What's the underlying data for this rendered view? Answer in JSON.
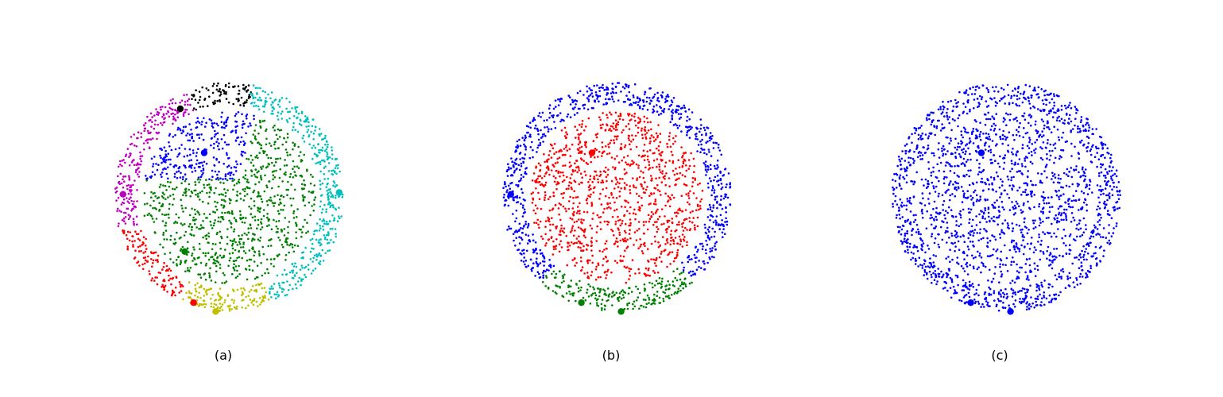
{
  "chart_data": [
    {
      "type": "scatter",
      "caption": "(a)",
      "shape": "disk-and-ring",
      "ring": {
        "inner_r": 1.04,
        "outer_r": 1.3
      },
      "disk": {
        "r": 0.98
      },
      "xlim": [
        -1.35,
        1.35
      ],
      "ylim": [
        -1.35,
        1.35
      ],
      "n_points": {
        "disk": 1100,
        "ring": 1000
      },
      "clusters": [
        {
          "region": "disk",
          "rule": "disk-upper-left",
          "color": "#0000ff",
          "center": [
            -0.28,
            0.5
          ]
        },
        {
          "region": "disk",
          "rule": "disk-rest",
          "color": "#008000",
          "center": [
            -0.5,
            -0.62
          ]
        },
        {
          "region": "ring",
          "angle_range": [
            -68,
            78
          ],
          "color": "#00bfbf",
          "center": [
            1.25,
            0.05
          ]
        },
        {
          "region": "ring",
          "angle_range": [
            78,
            112
          ],
          "color": "#000000",
          "center": [
            -0.55,
            1.0
          ]
        },
        {
          "region": "ring",
          "angle_range": [
            112,
            197
          ],
          "color": "#bf00bf",
          "center": [
            -1.2,
            0.03
          ]
        },
        {
          "region": "ring",
          "angle_range": [
            197,
            245
          ],
          "color": "#ff0000",
          "center": [
            -0.4,
            -1.2
          ]
        },
        {
          "region": "ring",
          "angle_range": [
            245,
            292
          ],
          "color": "#bfbf00",
          "center": [
            -0.15,
            -1.3
          ]
        }
      ]
    },
    {
      "type": "scatter",
      "caption": "(b)",
      "shape": "disk-and-ring",
      "ring": {
        "inner_r": 1.04,
        "outer_r": 1.3
      },
      "disk": {
        "r": 0.98
      },
      "xlim": [
        -1.35,
        1.35
      ],
      "ylim": [
        -1.35,
        1.35
      ],
      "n_points": {
        "disk": 1100,
        "ring": 1000
      },
      "clusters": [
        {
          "region": "disk",
          "rule": "disk-all",
          "color": "#ff0000",
          "center": [
            -0.28,
            0.5
          ]
        },
        {
          "region": "ring",
          "angle_range": [
            -48,
            228
          ],
          "color": "#0000ff",
          "center": [
            -1.2,
            0.03
          ]
        },
        {
          "region": "ring",
          "angle_range": [
            228,
            312
          ],
          "color": "#008000",
          "center": [
            -0.4,
            -1.2
          ]
        }
      ],
      "extra_centers": [
        {
          "color": "#008000",
          "point": [
            0.05,
            -1.3
          ]
        }
      ]
    },
    {
      "type": "scatter",
      "caption": "(c)",
      "shape": "disk-and-ring",
      "ring": {
        "inner_r": 1.04,
        "outer_r": 1.3
      },
      "disk": {
        "r": 0.98
      },
      "xlim": [
        -1.35,
        1.35
      ],
      "ylim": [
        -1.35,
        1.35
      ],
      "n_points": {
        "disk": 1100,
        "ring": 1000
      },
      "clusters": [
        {
          "region": "disk",
          "rule": "disk-all",
          "color": "#0000ff",
          "center": [
            -0.28,
            0.5
          ]
        },
        {
          "region": "ring",
          "angle_range": [
            0,
            360
          ],
          "color": "#0000ff",
          "center": [
            -0.4,
            -1.2
          ]
        }
      ],
      "extra_centers": [
        {
          "color": "#0000ff",
          "point": [
            0.05,
            -1.3
          ]
        }
      ]
    }
  ]
}
